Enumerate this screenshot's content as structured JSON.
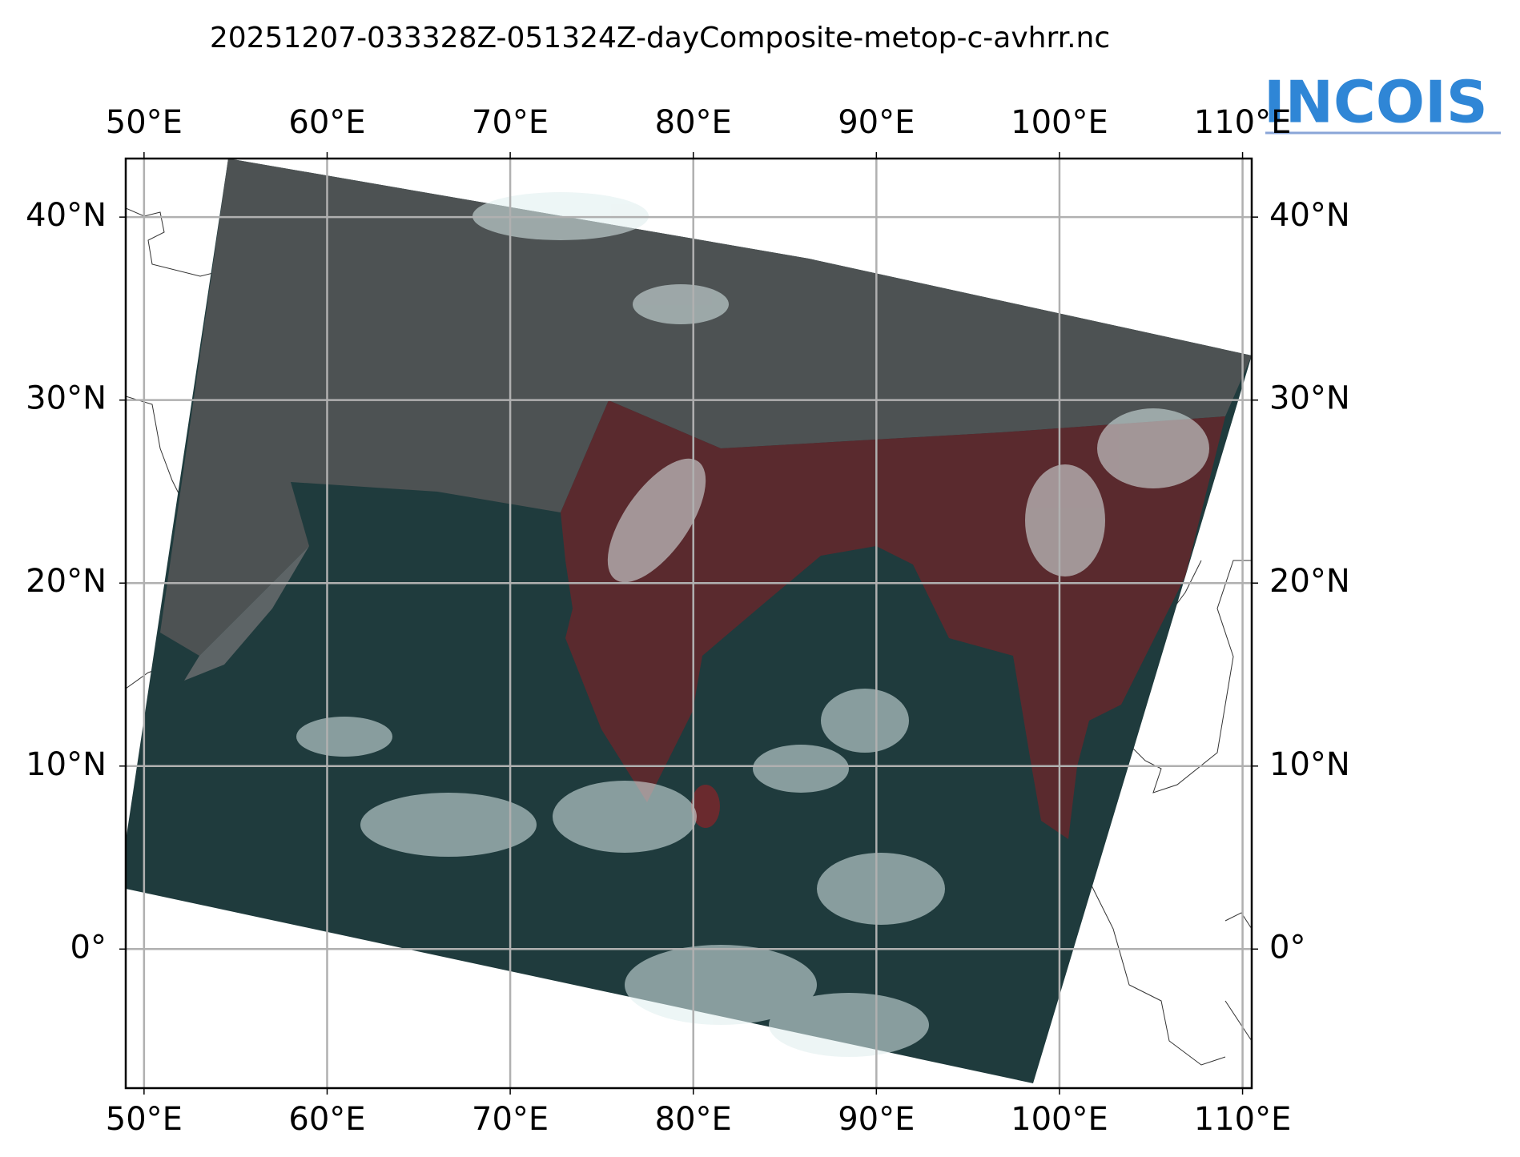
{
  "chart_data": {
    "type": "map",
    "title": "20251207-033328Z-051324Z-dayComposite-metop-c-avhrr.nc",
    "logo": "INCOIS",
    "xlim": [
      49,
      110.5
    ],
    "ylim": [
      -7.6,
      43.2
    ],
    "xticks": [
      {
        "value": 50,
        "label": "50°E"
      },
      {
        "value": 60,
        "label": "60°E"
      },
      {
        "value": 70,
        "label": "70°E"
      },
      {
        "value": 80,
        "label": "80°E"
      },
      {
        "value": 90,
        "label": "90°E"
      },
      {
        "value": 100,
        "label": "100°E"
      },
      {
        "value": 110,
        "label": "110°E"
      }
    ],
    "yticks": [
      {
        "value": 0,
        "label": "0°"
      },
      {
        "value": 10,
        "label": "10°N"
      },
      {
        "value": 20,
        "label": "20°N"
      },
      {
        "value": 30,
        "label": "30°N"
      },
      {
        "value": 40,
        "label": "40°N"
      }
    ],
    "grid": true
  }
}
